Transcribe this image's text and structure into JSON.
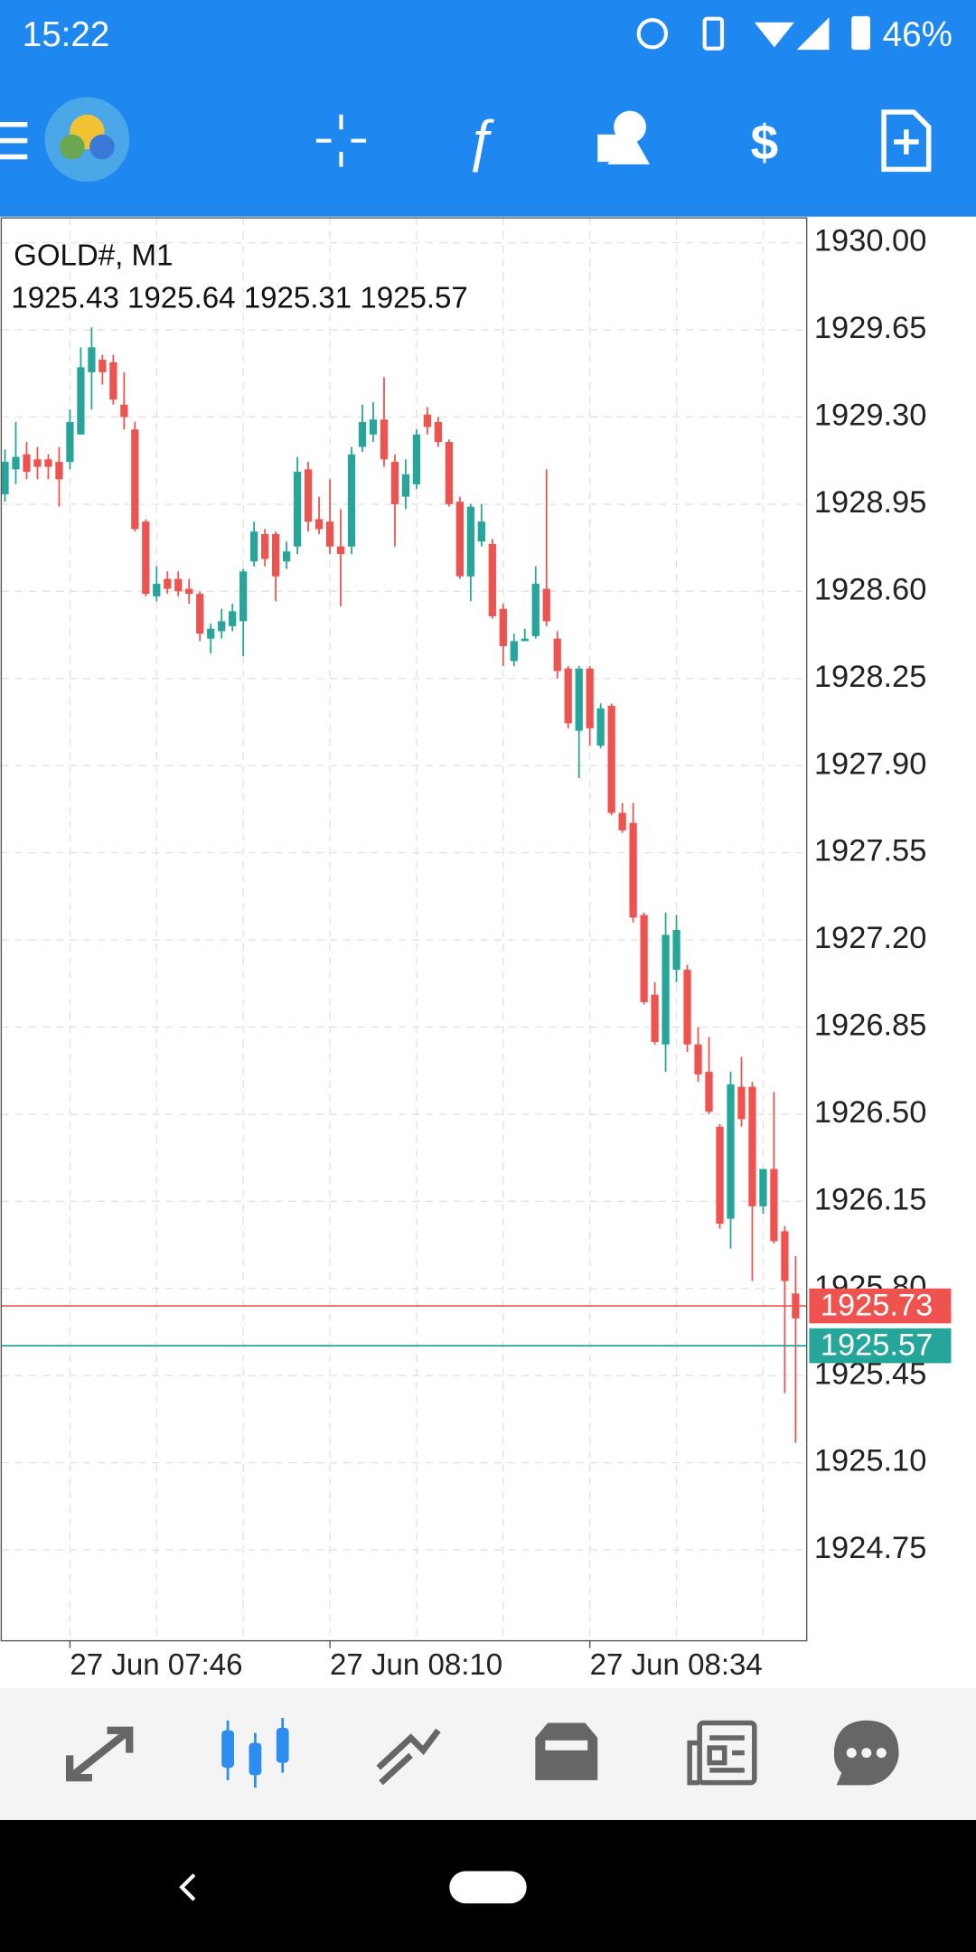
{
  "status_bar": {
    "time": "15:22",
    "battery": "46%"
  },
  "chart_data": {
    "type": "candlestick",
    "symbol_label": "GOLD#, M1",
    "info_values": [
      1925.43,
      1925.64,
      1925.31,
      1925.57
    ],
    "categories": [
      null,
      null,
      null,
      null,
      null,
      null,
      "27 Jun 07:46",
      null,
      null,
      null,
      null,
      null,
      null,
      null,
      null,
      null,
      null,
      null,
      null,
      null,
      null,
      null,
      null,
      null,
      null,
      null,
      null,
      null,
      null,
      null,
      "27 Jun 08:10",
      null,
      null,
      null,
      null,
      null,
      null,
      null,
      null,
      null,
      null,
      null,
      null,
      null,
      null,
      null,
      null,
      null,
      null,
      null,
      null,
      null,
      null,
      null,
      "27 Jun 08:34",
      null,
      null,
      null,
      null,
      null,
      null,
      null,
      null,
      null,
      null,
      null,
      null,
      null,
      null,
      null,
      null,
      null,
      null,
      null
    ],
    "open": [
      1928.99,
      1929.09,
      1929.15,
      1929.13,
      1929.13,
      1929.12,
      1929.12,
      1929.23,
      1929.48,
      1929.53,
      1929.52,
      1929.35,
      1929.25,
      1928.88,
      1928.58,
      1928.65,
      1928.65,
      1928.61,
      1928.59,
      1928.41,
      1928.44,
      1928.46,
      1928.48,
      1928.72,
      1928.83,
      1928.83,
      1928.72,
      1928.78,
      1929.09,
      1928.89,
      1928.88,
      1928.78,
      1928.78,
      1929.18,
      1929.23,
      1929.29,
      1929.12,
      1928.98,
      1929.03,
      1929.31,
      1929.28,
      1929.2,
      1928.96,
      1928.66,
      1928.8,
      1928.79,
      1928.53,
      1928.32,
      1928.4,
      1928.42,
      1928.61,
      1928.41,
      1928.29,
      1928.04,
      1928.29,
      1927.98,
      1928.14,
      1927.71,
      1927.67,
      1927.3,
      1926.98,
      1926.78,
      1927.08,
      1927.08,
      1926.78,
      1926.67,
      1926.45,
      1926.08,
      1926.61,
      1926.61,
      1926.13,
      1926.28,
      1926.03,
      1925.78
    ],
    "high": [
      1929.17,
      1929.28,
      1929.2,
      1929.18,
      1929.15,
      1929.18,
      1929.33,
      1929.58,
      1929.66,
      1929.55,
      1929.55,
      1929.48,
      1929.28,
      1928.89,
      1928.7,
      1928.68,
      1928.68,
      1928.65,
      1928.6,
      1928.47,
      1928.53,
      1928.55,
      1928.69,
      1928.88,
      1928.85,
      1928.84,
      1928.8,
      1929.14,
      1929.12,
      1928.98,
      1929.05,
      1928.93,
      1929.18,
      1929.35,
      1929.36,
      1929.46,
      1929.15,
      1929.13,
      1929.25,
      1929.34,
      1929.3,
      1929.21,
      1928.98,
      1928.95,
      1928.95,
      1928.81,
      1928.55,
      1928.43,
      1928.45,
      1928.7,
      1929.09,
      1928.44,
      1928.3,
      1928.3,
      1928.3,
      1928.15,
      1928.15,
      1927.75,
      1927.75,
      1927.31,
      1927.03,
      1927.31,
      1927.3,
      1927.1,
      1926.85,
      1926.81,
      1926.46,
      1926.67,
      1926.73,
      1926.63,
      1926.28,
      1926.59,
      1926.05,
      1925.93
    ],
    "low": [
      1928.96,
      1929.03,
      1929.05,
      1929.05,
      1929.05,
      1928.94,
      1929.09,
      1929.23,
      1929.33,
      1929.43,
      1929.35,
      1929.25,
      1928.84,
      1928.58,
      1928.56,
      1928.59,
      1928.58,
      1928.55,
      1928.4,
      1928.35,
      1928.41,
      1928.44,
      1928.34,
      1928.7,
      1928.7,
      1928.56,
      1928.69,
      1928.75,
      1928.84,
      1928.83,
      1928.75,
      1928.54,
      1928.75,
      1929.16,
      1929.2,
      1929.1,
      1928.78,
      1928.93,
      1929.01,
      1929.23,
      1929.18,
      1928.94,
      1928.65,
      1928.56,
      1928.78,
      1928.49,
      1928.3,
      1928.3,
      1928.4,
      1928.41,
      1928.46,
      1928.25,
      1928.05,
      1927.85,
      1927.98,
      1927.97,
      1927.7,
      1927.63,
      1927.27,
      1926.94,
      1926.78,
      1926.67,
      1927.03,
      1926.75,
      1926.63,
      1926.5,
      1926.04,
      1925.96,
      1926.45,
      1925.83,
      1926.1,
      1925.98,
      1925.38,
      1925.18
    ],
    "close": [
      1929.12,
      1929.14,
      1929.08,
      1929.1,
      1929.1,
      1929.05,
      1929.28,
      1929.5,
      1929.58,
      1929.48,
      1929.37,
      1929.3,
      1928.85,
      1928.59,
      1928.63,
      1928.61,
      1928.6,
      1928.59,
      1928.43,
      1928.45,
      1928.48,
      1928.52,
      1928.68,
      1928.84,
      1928.73,
      1928.66,
      1928.76,
      1929.08,
      1928.88,
      1928.85,
      1928.78,
      1928.75,
      1929.15,
      1929.28,
      1929.29,
      1929.13,
      1928.95,
      1929.07,
      1929.23,
      1929.26,
      1929.2,
      1928.95,
      1928.66,
      1928.94,
      1928.88,
      1928.5,
      1928.38,
      1928.4,
      1928.41,
      1928.63,
      1928.48,
      1928.28,
      1928.07,
      1928.29,
      1928.05,
      1928.13,
      1927.71,
      1927.64,
      1927.29,
      1926.95,
      1926.79,
      1927.22,
      1927.24,
      1926.78,
      1926.66,
      1926.51,
      1926.06,
      1926.62,
      1926.48,
      1926.13,
      1926.28,
      1925.99,
      1925.83,
      1925.68
    ],
    "up_color": "#26a69a",
    "down_color": "#ef5350",
    "ylim": [
      1924.385,
      1930.1
    ],
    "yticks": [
      {
        "value": 1930,
        "label": "1930.00"
      },
      1929.65,
      {
        "value": 1929.3,
        "label": "1929.30"
      },
      1928.95,
      {
        "value": 1928.6,
        "label": "1928.60"
      },
      1928.25,
      {
        "value": 1927.9,
        "label": "1927.90"
      },
      1927.55,
      {
        "value": 1927.2,
        "label": "1927.20"
      },
      1926.85,
      {
        "value": 1926.5,
        "label": "1926.50"
      },
      1926.15,
      {
        "value": 1925.8,
        "label": "1925.80"
      },
      1925.45,
      {
        "value": 1925.1,
        "label": "1925.10"
      },
      1924.75
    ],
    "grid": true,
    "ask": 1925.73,
    "bid": 1925.57
  }
}
